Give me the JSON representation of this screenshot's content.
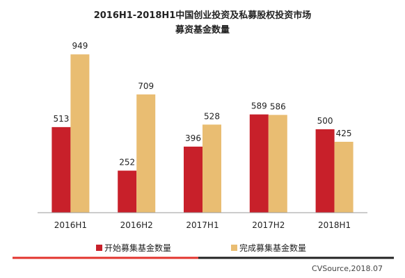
{
  "chart_data": {
    "type": "bar",
    "title": [
      "2016H1-2018H1中国创业投资及私募股权投资市场",
      "募资基金数量"
    ],
    "categories": [
      "2016H1",
      "2016H2",
      "2017H1",
      "2017H2",
      "2018H1"
    ],
    "series": [
      {
        "name": "开始募集基金数量",
        "values": [
          513,
          252,
          396,
          589,
          500
        ],
        "color": "#c8202a"
      },
      {
        "name": "完成募集基金数量",
        "values": [
          949,
          709,
          528,
          586,
          425
        ],
        "color": "#e9bd72"
      }
    ],
    "ylim": [
      0,
      1000
    ],
    "grid": false,
    "legend_position": "bottom",
    "source": "CVSource,2018.07",
    "footer_line_colors": [
      "#e2342e",
      "#222222"
    ]
  }
}
